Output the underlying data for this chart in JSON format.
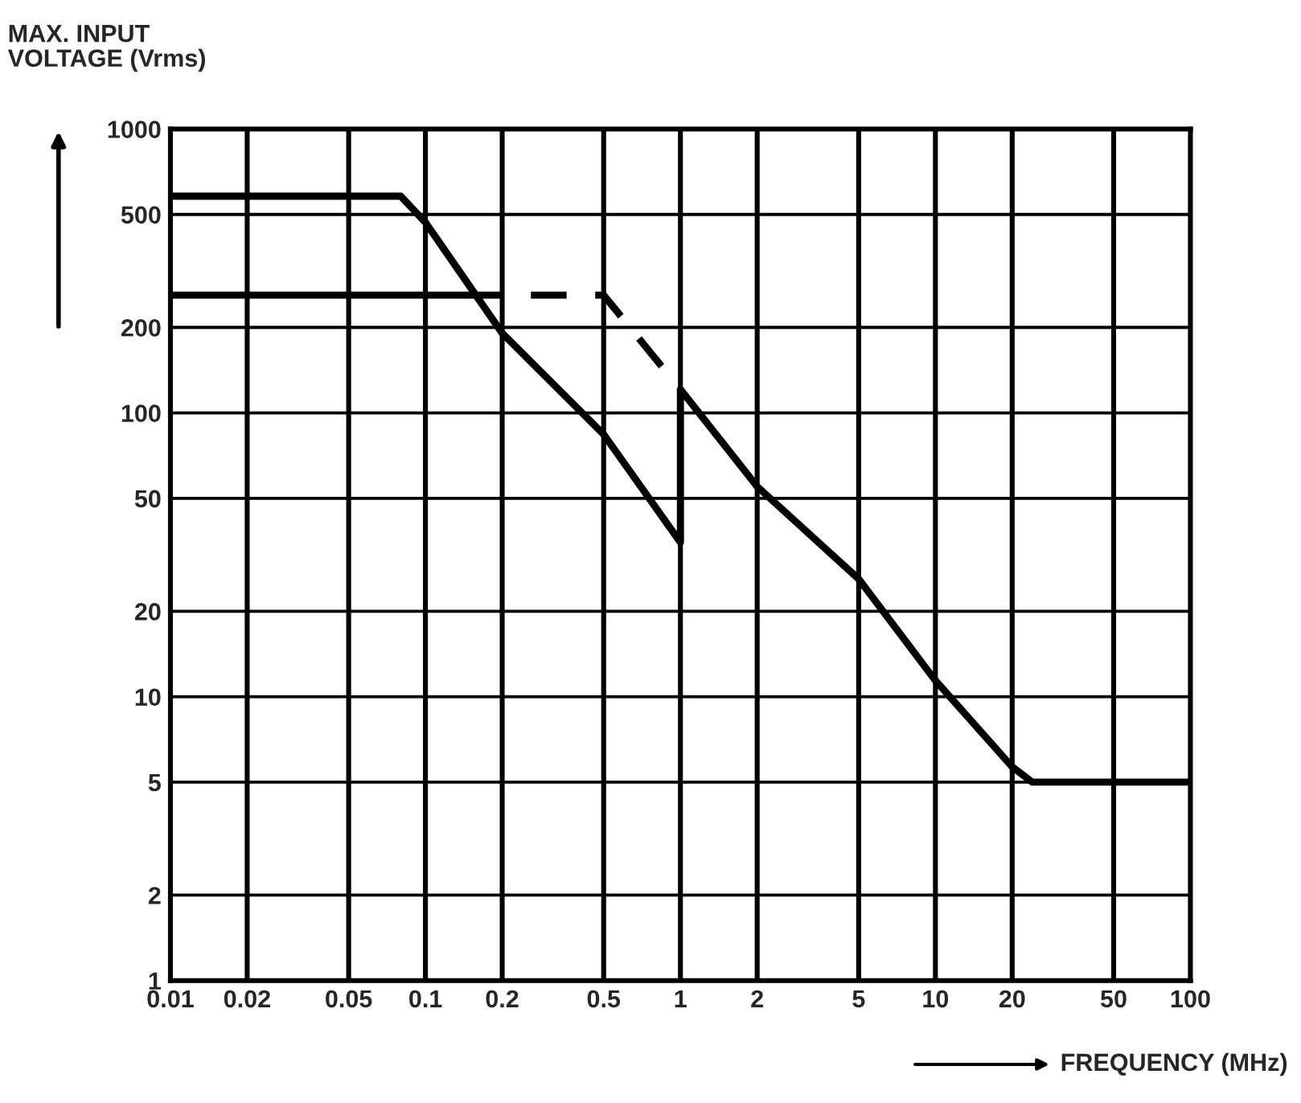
{
  "chart_data": {
    "type": "line",
    "xlabel": "FREQUENCY (MHz)",
    "ylabel": "MAX. INPUT\nVOLTAGE (Vrms)",
    "series": [
      {
        "color": "#000000",
        "line_style": "solid",
        "x": [
          0.01,
          0.08,
          0.1,
          0.2,
          0.5,
          1,
          1,
          2,
          5,
          10,
          20,
          24,
          100
        ],
        "values": [
          580,
          580,
          469,
          191,
          84,
          35,
          121,
          55,
          26,
          11.4,
          5.66,
          5,
          5
        ]
      },
      {
        "color": "#000000",
        "line_style": "solid",
        "x": [
          0.01,
          0.145
        ],
        "values": [
          260,
          260
        ]
      },
      {
        "color": "#000000",
        "line_style": "dashed",
        "x": [
          0.145,
          0.5,
          1
        ],
        "values": [
          260,
          260,
          121
        ]
      }
    ],
    "xlim": [
      0.01,
      100
    ],
    "ylim": [
      1,
      1000
    ],
    "xticks": [
      0.01,
      0.02,
      0.05,
      0.1,
      0.2,
      0.5,
      1,
      2,
      5,
      10,
      20,
      50,
      100
    ],
    "yticks": [
      1,
      2,
      5,
      10,
      20,
      50,
      100,
      200,
      500,
      1000
    ],
    "log": "xy",
    "grid": true,
    "marker": "none"
  }
}
